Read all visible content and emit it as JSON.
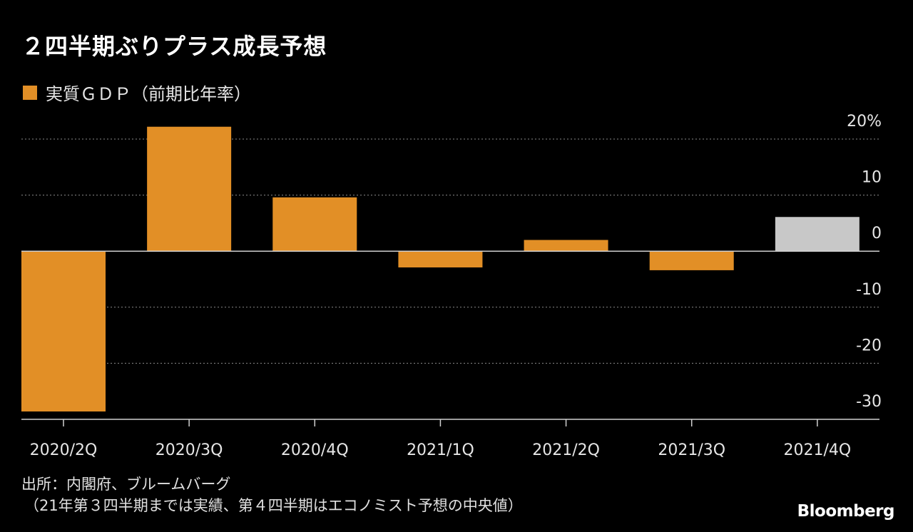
{
  "title": "２四半期ぶりプラス成長予想",
  "legend": {
    "label": "実質ＧＤＰ（前期比年率）"
  },
  "source": {
    "line1": "出所：内閣府、ブルームバーグ",
    "line2": "（21年第３四半期までは実績、第４四半期はエコノミスト予想の中央値）"
  },
  "brand": "Bloomberg",
  "chart_data": {
    "type": "bar",
    "categories": [
      "2020/2Q",
      "2020/3Q",
      "2020/4Q",
      "2021/1Q",
      "2021/2Q",
      "2021/3Q",
      "2021/4Q"
    ],
    "series": [
      {
        "name": "実質ＧＤＰ（前期比年率）",
        "values": [
          -28.6,
          22.2,
          9.6,
          -2.9,
          2.0,
          -3.4,
          6.1
        ]
      }
    ],
    "bar_colors": [
      "#e28f26",
      "#e28f26",
      "#e28f26",
      "#e28f26",
      "#e28f26",
      "#e28f26",
      "#c8c8c8"
    ],
    "forecast_index": 6,
    "ylim": [
      -30,
      20
    ],
    "yticks": [
      20,
      10,
      0,
      -10,
      -20,
      -30
    ],
    "ytick_labels": [
      "20%",
      "10",
      "0",
      "-10",
      "-20",
      "-30"
    ],
    "y_axis_position": "right",
    "grid": "dotted horizontal",
    "legend_position": "top-left",
    "colors": {
      "actual": "#e28f26",
      "forecast": "#c8c8c8",
      "background": "#000000"
    }
  }
}
